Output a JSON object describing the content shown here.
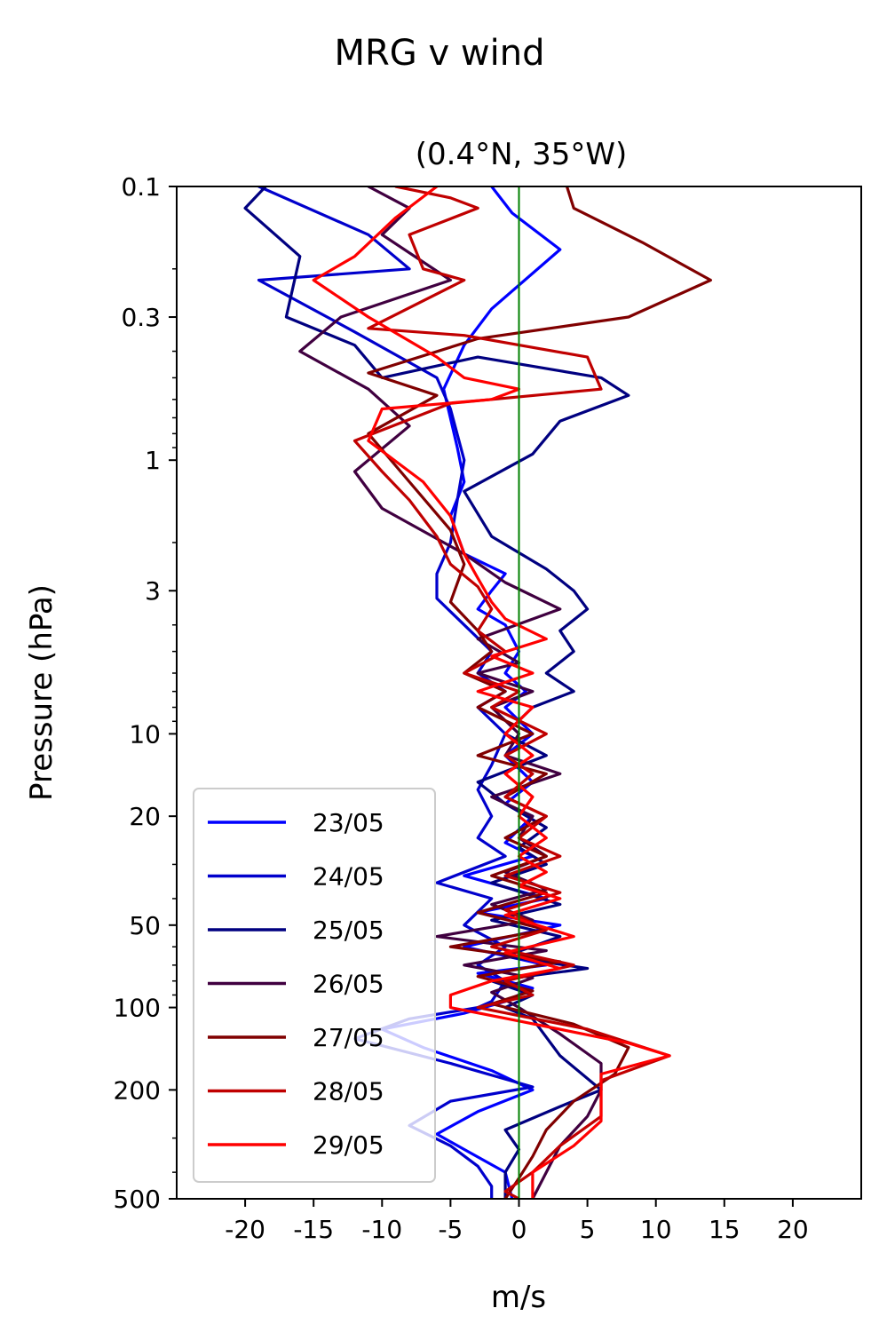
{
  "chart_data": {
    "type": "line",
    "suptitle": "MRG v wind",
    "title": "(0.4°N, 35°W)",
    "xlabel": "m/s",
    "ylabel": "Pressure (hPa)",
    "xlim": [
      -25,
      25
    ],
    "ylim": [
      500,
      0.1
    ],
    "yscale": "log",
    "xticks": [
      -20,
      -15,
      -10,
      -5,
      0,
      5,
      10,
      15,
      20
    ],
    "xtick_labels": [
      "-20",
      "-15",
      "-10",
      "-5",
      "0",
      "5",
      "10",
      "15",
      "20"
    ],
    "yticks": [
      0.1,
      0.3,
      1,
      3,
      10,
      20,
      50,
      100,
      200,
      500
    ],
    "ytick_labels": [
      "0.1",
      "0.3",
      "1",
      "3",
      "10",
      "20",
      "50",
      "100",
      "200",
      "500"
    ],
    "reference_line": {
      "x": 0,
      "color": "#008000"
    },
    "legend_position": "lower-left",
    "series": [
      {
        "name": "23/05",
        "color": "#0000ff",
        "points": [
          [
            -2,
            0.1
          ],
          [
            -0.5,
            0.125
          ],
          [
            3,
            0.17
          ],
          [
            -2,
            0.28
          ],
          [
            -4,
            0.38
          ],
          [
            -5.5,
            0.55
          ],
          [
            -4.5,
            0.9
          ],
          [
            -4,
            1.2
          ],
          [
            -5,
            1.6
          ],
          [
            -4,
            2.2
          ],
          [
            -1,
            2.6
          ],
          [
            -2,
            3
          ],
          [
            -3,
            3.5
          ],
          [
            -1,
            4
          ],
          [
            0,
            5
          ],
          [
            -1,
            6
          ],
          [
            0.5,
            7
          ],
          [
            -1,
            8
          ],
          [
            1,
            10
          ],
          [
            -1,
            12
          ],
          [
            1,
            15
          ],
          [
            -1,
            18
          ],
          [
            1,
            20
          ],
          [
            -1,
            25
          ],
          [
            1,
            28
          ],
          [
            -4,
            33
          ],
          [
            2,
            40
          ],
          [
            -3,
            45
          ],
          [
            3,
            50
          ],
          [
            -4,
            60
          ],
          [
            2,
            70
          ],
          [
            -3,
            75
          ],
          [
            1,
            85
          ],
          [
            -1,
            95
          ],
          [
            -4,
            105
          ],
          [
            -10,
            120
          ],
          [
            -7,
            140
          ],
          [
            -2,
            170
          ],
          [
            1,
            200
          ],
          [
            -3,
            240
          ],
          [
            -6,
            290
          ],
          [
            -4,
            330
          ],
          [
            -1,
            400
          ],
          [
            -0.5,
            500
          ]
        ]
      },
      {
        "name": "24/05",
        "color": "#0000cc",
        "points": [
          [
            -19,
            0.1
          ],
          [
            -11,
            0.15
          ],
          [
            -8,
            0.2
          ],
          [
            -19,
            0.22
          ],
          [
            -12,
            0.34
          ],
          [
            -6,
            0.5
          ],
          [
            -5,
            0.65
          ],
          [
            -4,
            1
          ],
          [
            -4.5,
            1.4
          ],
          [
            -5,
            2
          ],
          [
            -6,
            2.6
          ],
          [
            -6,
            3.2
          ],
          [
            -4,
            4
          ],
          [
            -2,
            5
          ],
          [
            -3,
            6
          ],
          [
            -1,
            7
          ],
          [
            -3,
            8
          ],
          [
            -1,
            10
          ],
          [
            -2,
            13
          ],
          [
            -3,
            16
          ],
          [
            -2,
            20
          ],
          [
            -3,
            24
          ],
          [
            -1,
            28
          ],
          [
            -6,
            35
          ],
          [
            -2,
            40
          ],
          [
            -4,
            50
          ],
          [
            -1,
            60
          ],
          [
            -3,
            70
          ],
          [
            -1,
            80
          ],
          [
            -2,
            95
          ],
          [
            -3,
            100
          ],
          [
            -8,
            110
          ],
          [
            -12,
            130
          ],
          [
            -5,
            160
          ],
          [
            1,
            195
          ],
          [
            -5,
            220
          ],
          [
            -8,
            270
          ],
          [
            -5,
            320
          ],
          [
            -3,
            380
          ],
          [
            -2,
            450
          ],
          [
            -2,
            500
          ]
        ]
      },
      {
        "name": "25/05",
        "color": "#000080",
        "points": [
          [
            -18.5,
            0.1
          ],
          [
            -20,
            0.12
          ],
          [
            -16,
            0.18
          ],
          [
            -17,
            0.3
          ],
          [
            -12,
            0.38
          ],
          [
            -10,
            0.5
          ],
          [
            -3,
            0.42
          ],
          [
            6,
            0.5
          ],
          [
            8,
            0.58
          ],
          [
            3,
            0.72
          ],
          [
            1,
            0.95
          ],
          [
            -4,
            1.3
          ],
          [
            -2,
            1.9
          ],
          [
            2,
            2.5
          ],
          [
            4,
            3
          ],
          [
            5,
            3.5
          ],
          [
            3,
            4.2
          ],
          [
            4,
            5
          ],
          [
            2,
            6
          ],
          [
            4,
            7
          ],
          [
            1,
            8
          ],
          [
            -1,
            10
          ],
          [
            2,
            12
          ],
          [
            -3,
            15
          ],
          [
            -1,
            18
          ],
          [
            2,
            22
          ],
          [
            0,
            26
          ],
          [
            2,
            30
          ],
          [
            -2,
            35
          ],
          [
            3,
            42
          ],
          [
            -2,
            48
          ],
          [
            3,
            55
          ],
          [
            -1,
            65
          ],
          [
            5,
            72
          ],
          [
            -2,
            80
          ],
          [
            1,
            90
          ],
          [
            -1,
            100
          ],
          [
            1,
            110
          ],
          [
            3,
            150
          ],
          [
            6,
            200
          ],
          [
            3,
            230
          ],
          [
            -1,
            280
          ],
          [
            0,
            330
          ],
          [
            -1,
            400
          ],
          [
            -1,
            500
          ]
        ]
      },
      {
        "name": "26/05",
        "color": "#400040",
        "points": [
          [
            -11,
            0.1
          ],
          [
            -8,
            0.12
          ],
          [
            -10,
            0.15
          ],
          [
            -5,
            0.22
          ],
          [
            -13,
            0.3
          ],
          [
            -16,
            0.4
          ],
          [
            -11,
            0.55
          ],
          [
            -8,
            0.75
          ],
          [
            -12,
            1.1
          ],
          [
            -10,
            1.5
          ],
          [
            -4,
            2.2
          ],
          [
            -1,
            2.8
          ],
          [
            3,
            3.5
          ],
          [
            -3,
            4.5
          ],
          [
            0,
            5.5
          ],
          [
            -3,
            6
          ],
          [
            1,
            7
          ],
          [
            -2,
            8
          ],
          [
            0,
            10
          ],
          [
            -1,
            12
          ],
          [
            3,
            14
          ],
          [
            -2,
            17
          ],
          [
            1,
            20
          ],
          [
            0,
            24
          ],
          [
            2,
            28
          ],
          [
            -1,
            32
          ],
          [
            2,
            37
          ],
          [
            -2,
            42
          ],
          [
            1,
            48
          ],
          [
            -6,
            55
          ],
          [
            2,
            62
          ],
          [
            -4,
            70
          ],
          [
            1,
            78
          ],
          [
            -2,
            88
          ],
          [
            0,
            100
          ],
          [
            3,
            125
          ],
          [
            6,
            160
          ],
          [
            6,
            200
          ],
          [
            5,
            250
          ],
          [
            3,
            320
          ],
          [
            2,
            400
          ],
          [
            1,
            500
          ]
        ]
      },
      {
        "name": "27/05",
        "color": "#800000",
        "points": [
          [
            3.5,
            0.1
          ],
          [
            4,
            0.12
          ],
          [
            9,
            0.16
          ],
          [
            14,
            0.22
          ],
          [
            8,
            0.3
          ],
          [
            -3,
            0.36
          ],
          [
            -11,
            0.48
          ],
          [
            -6,
            0.58
          ],
          [
            -11,
            0.8
          ],
          [
            -8,
            1.2
          ],
          [
            -5,
            1.8
          ],
          [
            -4,
            2.4
          ],
          [
            -5,
            3.3
          ],
          [
            -3,
            4.2
          ],
          [
            -2,
            5
          ],
          [
            -4,
            6
          ],
          [
            -1,
            7
          ],
          [
            -3,
            8
          ],
          [
            1,
            10
          ],
          [
            -3,
            12
          ],
          [
            2,
            14
          ],
          [
            -1,
            17
          ],
          [
            2,
            20
          ],
          [
            -1,
            24
          ],
          [
            2,
            28
          ],
          [
            -2,
            33
          ],
          [
            2,
            38
          ],
          [
            -3,
            45
          ],
          [
            2,
            52
          ],
          [
            -5,
            60
          ],
          [
            3,
            68
          ],
          [
            -3,
            77
          ],
          [
            1,
            87
          ],
          [
            -2,
            97
          ],
          [
            4,
            115
          ],
          [
            8,
            140
          ],
          [
            7,
            175
          ],
          [
            4,
            220
          ],
          [
            2,
            280
          ],
          [
            1,
            350
          ],
          [
            0,
            420
          ],
          [
            -1,
            500
          ]
        ]
      },
      {
        "name": "28/05",
        "color": "#c00000",
        "points": [
          [
            -9,
            0.1
          ],
          [
            -5,
            0.11
          ],
          [
            -3,
            0.12
          ],
          [
            -8,
            0.15
          ],
          [
            -7,
            0.2
          ],
          [
            -4,
            0.22
          ],
          [
            -11,
            0.33
          ],
          [
            -4,
            0.35
          ],
          [
            5,
            0.42
          ],
          [
            6,
            0.55
          ],
          [
            -5,
            0.62
          ],
          [
            -12,
            0.85
          ],
          [
            -10,
            1.1
          ],
          [
            -8,
            1.4
          ],
          [
            -6,
            1.9
          ],
          [
            -5,
            2.4
          ],
          [
            -3,
            2.9
          ],
          [
            -2,
            3.5
          ],
          [
            -3,
            4.2
          ],
          [
            -1,
            5
          ],
          [
            -4,
            6
          ],
          [
            0,
            7
          ],
          [
            -2,
            8
          ],
          [
            2,
            10
          ],
          [
            -1,
            12
          ],
          [
            1,
            14
          ],
          [
            -1,
            17
          ],
          [
            2,
            20
          ],
          [
            0,
            24
          ],
          [
            3,
            28
          ],
          [
            -1,
            33
          ],
          [
            3,
            38
          ],
          [
            -1,
            44
          ],
          [
            2,
            52
          ],
          [
            -2,
            60
          ],
          [
            4,
            70
          ],
          [
            -1,
            80
          ],
          [
            1,
            90
          ],
          [
            -3,
            100
          ],
          [
            5,
            120
          ],
          [
            11,
            150
          ],
          [
            6,
            185
          ],
          [
            6,
            250
          ],
          [
            3,
            320
          ],
          [
            1,
            400
          ],
          [
            -1,
            470
          ],
          [
            0,
            500
          ]
        ]
      },
      {
        "name": "29/05",
        "color": "#ff0000",
        "points": [
          [
            -6,
            0.1
          ],
          [
            -9,
            0.13
          ],
          [
            -12,
            0.18
          ],
          [
            -15,
            0.22
          ],
          [
            -11,
            0.3
          ],
          [
            -6,
            0.42
          ],
          [
            -4,
            0.5
          ],
          [
            0,
            0.55
          ],
          [
            -2,
            0.6
          ],
          [
            -10,
            0.65
          ],
          [
            -11,
            0.85
          ],
          [
            -7,
            1.2
          ],
          [
            -5,
            1.6
          ],
          [
            -4,
            2.2
          ],
          [
            -3,
            2.7
          ],
          [
            -2,
            3.3
          ],
          [
            -1,
            3.8
          ],
          [
            2,
            4.5
          ],
          [
            -2,
            5.2
          ],
          [
            1,
            6
          ],
          [
            -3,
            7
          ],
          [
            1,
            8
          ],
          [
            -1,
            10
          ],
          [
            1,
            12
          ],
          [
            -1,
            14
          ],
          [
            1,
            17
          ],
          [
            0,
            20
          ],
          [
            2,
            24
          ],
          [
            0,
            28
          ],
          [
            2,
            32
          ],
          [
            0,
            36
          ],
          [
            3,
            40
          ],
          [
            -1,
            46
          ],
          [
            4,
            55
          ],
          [
            -1,
            63
          ],
          [
            3,
            72
          ],
          [
            -2,
            80
          ],
          [
            -5,
            90
          ],
          [
            -5,
            100
          ],
          [
            0,
            112
          ],
          [
            8,
            135
          ],
          [
            11,
            150
          ],
          [
            6,
            175
          ],
          [
            6,
            210
          ],
          [
            6,
            260
          ],
          [
            4,
            320
          ],
          [
            1,
            400
          ],
          [
            1,
            500
          ]
        ]
      }
    ]
  }
}
